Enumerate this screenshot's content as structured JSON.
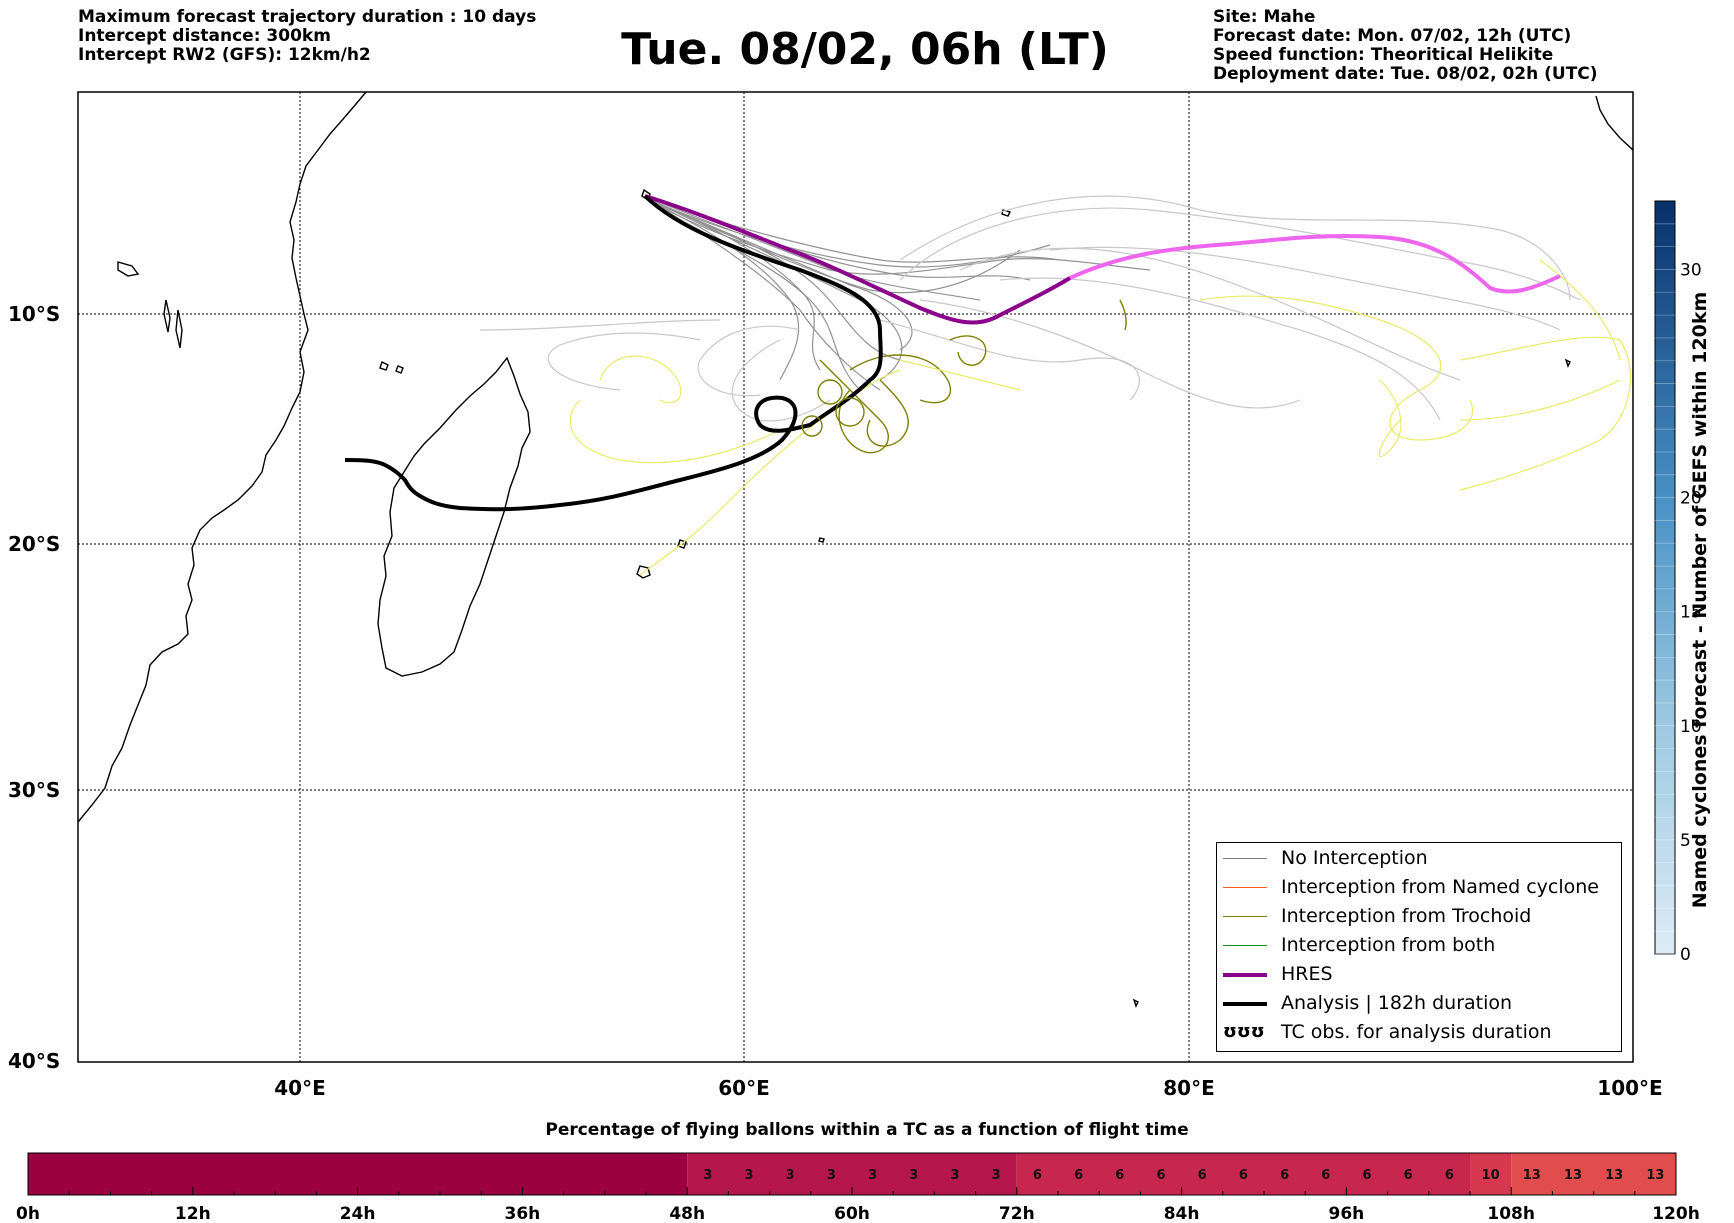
{
  "header": {
    "left_lines": [
      "Maximum forecast trajectory duration : 10 days",
      "Intercept distance: 300km",
      "Intercept RW2 (GFS):  12km/h2"
    ],
    "title": "Tue. 08/02, 06h (LT)",
    "right_lines": [
      "Site: Mahe",
      "Forecast date: Mon. 07/02, 12h (UTC)",
      "Speed function: Theoritical Helikite",
      "Deployment date: Tue. 08/02, 02h (UTC)"
    ]
  },
  "map": {
    "lon_labels": [
      "40°E",
      "60°E",
      "80°E",
      "100°E"
    ],
    "lat_labels": [
      "10°S",
      "20°S",
      "30°S",
      "40°S"
    ]
  },
  "legend": {
    "items": [
      {
        "label": "No Interception",
        "color": "#7f7f7f"
      },
      {
        "label": "Interception from Named cyclone",
        "color": "#ff5a1f"
      },
      {
        "label": "Interception from Trochoid",
        "color": "#808000"
      },
      {
        "label": "Interception from both",
        "color": "#1a8c1a"
      },
      {
        "label": "HRES",
        "color": "#8b008b"
      },
      {
        "label": "Analysis | 182h duration",
        "color": "#000000"
      }
    ],
    "tc_symbol": "ʊʊʊ",
    "tc_label": "TC obs. for analysis duration"
  },
  "vertical_colorbar": {
    "title": "Named cyclones forecast - Number of GEFS within 120km",
    "ticks": [
      "0",
      "5",
      "10",
      "15",
      "20",
      "30"
    ],
    "top_color": "#08306b",
    "bottom_color": "#deebf7"
  },
  "bottom_bar": {
    "title": "Percentage of flying ballons within a TC as a function of flight time",
    "tick_labels": [
      "0h",
      "12h",
      "24h",
      "36h",
      "48h",
      "60h",
      "72h",
      "84h",
      "96h",
      "108h",
      "120h"
    ],
    "cells": [
      {
        "from": 0,
        "to": 48,
        "value": "",
        "color": "#9b0041"
      },
      {
        "from": 48,
        "to": 72,
        "value": "3",
        "color": "#b5164b",
        "count": 8
      },
      {
        "from": 72,
        "to": 105,
        "value": "6",
        "color": "#c7274f",
        "count": 11
      },
      {
        "from": 105,
        "to": 108,
        "value": "10",
        "color": "#d5384f",
        "count": 1
      },
      {
        "from": 108,
        "to": 120,
        "value": "13",
        "color": "#e14d4d",
        "count": 4
      }
    ]
  }
}
